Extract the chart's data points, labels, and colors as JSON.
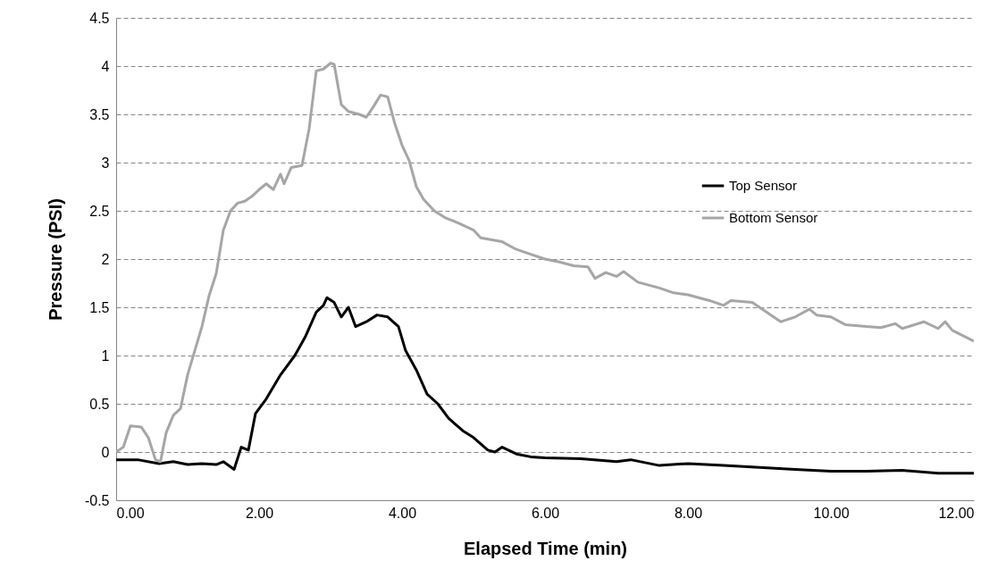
{
  "chart_data": {
    "type": "line",
    "xlabel": "Elapsed Time (min)",
    "ylabel": "Pressure (PSI)",
    "xlim": [
      0,
      12
    ],
    "xticks": [
      {
        "value": 0,
        "label": "0.00"
      },
      {
        "value": 2,
        "label": "2.00"
      },
      {
        "value": 4,
        "label": "4.00"
      },
      {
        "value": 6,
        "label": "6.00"
      },
      {
        "value": 8,
        "label": "8.00"
      },
      {
        "value": 10,
        "label": "10.00"
      },
      {
        "value": 12,
        "label": "12.00"
      }
    ],
    "ylim": [
      -0.5,
      4.5
    ],
    "yticks": [
      -0.5,
      0,
      0.5,
      1,
      1.5,
      2,
      2.5,
      3,
      3.5,
      4,
      4.5
    ],
    "grid": "y",
    "legend": "top right",
    "line_style": "solid",
    "marker": "none",
    "series": [
      {
        "name": "Top Sensor",
        "color": "#000000",
        "x": [
          0,
          0.3,
          0.6,
          0.8,
          1.0,
          1.2,
          1.4,
          1.5,
          1.65,
          1.75,
          1.85,
          1.95,
          2.1,
          2.3,
          2.5,
          2.65,
          2.8,
          2.9,
          2.95,
          3.05,
          3.15,
          3.25,
          3.35,
          3.5,
          3.65,
          3.8,
          3.95,
          4.05,
          4.2,
          4.35,
          4.5,
          4.65,
          4.85,
          5.0,
          5.2,
          5.3,
          5.4,
          5.6,
          5.8,
          6.0,
          6.5,
          7.0,
          7.2,
          7.6,
          8.0,
          8.5,
          9.0,
          9.5,
          10.0,
          10.5,
          11.0,
          11.5,
          12.0
        ],
        "values": [
          -0.08,
          -0.08,
          -0.12,
          -0.1,
          -0.13,
          -0.12,
          -0.13,
          -0.1,
          -0.18,
          0.05,
          0.02,
          0.4,
          0.55,
          0.8,
          1.0,
          1.2,
          1.45,
          1.52,
          1.6,
          1.55,
          1.4,
          1.5,
          1.3,
          1.35,
          1.42,
          1.4,
          1.3,
          1.05,
          0.85,
          0.6,
          0.5,
          0.35,
          0.22,
          0.15,
          0.02,
          0.0,
          0.05,
          -0.02,
          -0.05,
          -0.06,
          -0.07,
          -0.1,
          -0.08,
          -0.14,
          -0.12,
          -0.14,
          -0.16,
          -0.18,
          -0.2,
          -0.2,
          -0.19,
          -0.22,
          -0.22
        ]
      },
      {
        "name": "Bottom Sensor",
        "color": "#a6a6a6",
        "x": [
          0,
          0.1,
          0.2,
          0.35,
          0.45,
          0.55,
          0.62,
          0.7,
          0.8,
          0.9,
          1.0,
          1.1,
          1.2,
          1.3,
          1.4,
          1.5,
          1.6,
          1.7,
          1.8,
          1.9,
          2.0,
          2.1,
          2.2,
          2.3,
          2.35,
          2.45,
          2.6,
          2.7,
          2.8,
          2.9,
          3.0,
          3.05,
          3.15,
          3.25,
          3.4,
          3.5,
          3.6,
          3.7,
          3.8,
          3.9,
          4.0,
          4.1,
          4.2,
          4.3,
          4.45,
          4.6,
          4.8,
          5.0,
          5.1,
          5.4,
          5.6,
          5.8,
          6.0,
          6.2,
          6.4,
          6.6,
          6.7,
          6.85,
          7.0,
          7.1,
          7.3,
          7.6,
          7.8,
          8.0,
          8.3,
          8.5,
          8.6,
          8.9,
          9.0,
          9.3,
          9.5,
          9.7,
          9.8,
          10.0,
          10.2,
          10.5,
          10.7,
          10.9,
          11.0,
          11.3,
          11.5,
          11.6,
          11.7,
          12.0
        ],
        "values": [
          0,
          0.05,
          0.27,
          0.26,
          0.15,
          -0.08,
          -0.1,
          0.2,
          0.38,
          0.45,
          0.8,
          1.05,
          1.3,
          1.62,
          1.85,
          2.3,
          2.5,
          2.58,
          2.6,
          2.65,
          2.72,
          2.78,
          2.72,
          2.88,
          2.78,
          2.95,
          2.97,
          3.35,
          3.95,
          3.97,
          4.03,
          4.02,
          3.6,
          3.53,
          3.5,
          3.47,
          3.58,
          3.7,
          3.68,
          3.4,
          3.18,
          3.02,
          2.75,
          2.62,
          2.5,
          2.43,
          2.37,
          2.3,
          2.22,
          2.18,
          2.1,
          2.05,
          2.0,
          1.97,
          1.93,
          1.92,
          1.8,
          1.86,
          1.82,
          1.87,
          1.76,
          1.7,
          1.65,
          1.63,
          1.57,
          1.52,
          1.57,
          1.55,
          1.5,
          1.35,
          1.4,
          1.48,
          1.42,
          1.4,
          1.32,
          1.3,
          1.29,
          1.33,
          1.28,
          1.35,
          1.28,
          1.35,
          1.26,
          1.15
        ]
      }
    ]
  }
}
